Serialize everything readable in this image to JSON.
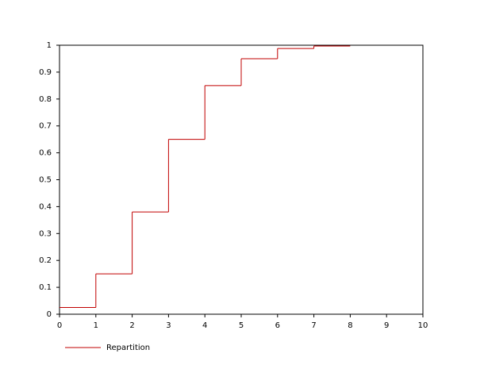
{
  "chart_data": {
    "type": "step",
    "x": [
      0,
      1,
      2,
      3,
      4,
      5,
      6,
      7,
      8
    ],
    "series": [
      {
        "name": "Repartition",
        "color": "#c00000",
        "values": [
          0.025,
          0.15,
          0.38,
          0.65,
          0.85,
          0.95,
          0.988,
          0.997,
          0.997
        ]
      }
    ],
    "xlim": [
      0,
      10
    ],
    "xticks": [
      0,
      1,
      2,
      3,
      4,
      5,
      6,
      7,
      8,
      9,
      10
    ],
    "ylim": [
      0,
      1
    ],
    "yticks": [
      0,
      0.1,
      0.2,
      0.3,
      0.4,
      0.5,
      0.6,
      0.7,
      0.8,
      0.9,
      1
    ],
    "legend": "bottom-left"
  }
}
